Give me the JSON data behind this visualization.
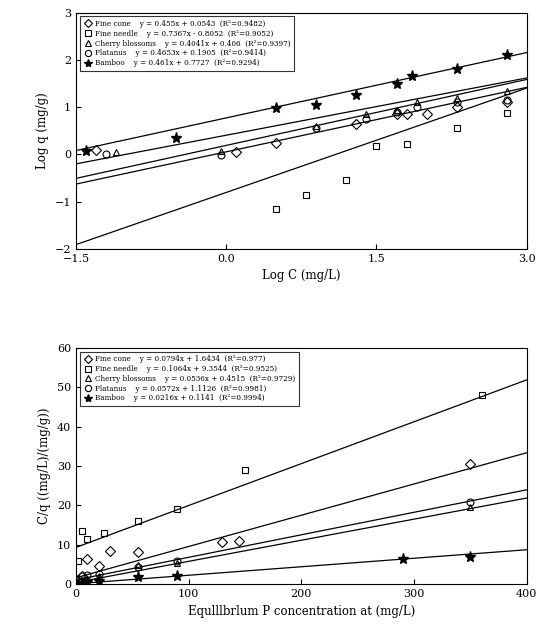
{
  "top": {
    "xlabel": "Log C (mg/L)",
    "ylabel": "Log q (mg/g)",
    "xlim": [
      -1.5,
      3.0
    ],
    "ylim": [
      -2.0,
      3.0
    ],
    "xticks": [
      -1.5,
      0,
      1.5,
      3
    ],
    "yticks": [
      -2,
      -1,
      0,
      1,
      2,
      3
    ],
    "series": [
      {
        "label": "Fine cone",
        "marker": "D",
        "markersize": 5,
        "eq_label": "y = 0.455x + 0.0543  (R²=0.9482)",
        "slope": 0.455,
        "intercept": 0.0543,
        "x_data": [
          -1.3,
          0.1,
          0.5,
          1.3,
          1.7,
          1.8,
          2.0,
          2.3,
          2.8
        ],
        "y_data": [
          0.1,
          0.05,
          0.25,
          0.65,
          0.85,
          0.85,
          0.85,
          1.0,
          1.1
        ]
      },
      {
        "label": "Fine needle",
        "marker": "s",
        "markersize": 5,
        "eq_label": "y = 0.7367x - 0.8052  (R²=0.9052)",
        "slope": 0.7367,
        "intercept": -0.8052,
        "x_data": [
          0.5,
          0.8,
          1.2,
          1.5,
          1.8,
          2.3,
          2.8
        ],
        "y_data": [
          -1.15,
          -0.85,
          -0.55,
          0.17,
          0.23,
          0.55,
          0.88
        ]
      },
      {
        "label": "Cherry blossoms",
        "marker": "^",
        "markersize": 5,
        "eq_label": "y = 0.4041x + 0.406  (R²=0.9397)",
        "slope": 0.4041,
        "intercept": 0.406,
        "x_data": [
          -1.1,
          -0.05,
          0.9,
          1.4,
          1.7,
          1.9,
          2.3,
          2.8
        ],
        "y_data": [
          0.05,
          0.07,
          0.6,
          0.85,
          0.95,
          1.1,
          1.2,
          1.35
        ]
      },
      {
        "label": "Platanus",
        "marker": "o",
        "markersize": 5,
        "eq_label": "y = 0.4653x + 0.1905  (R²=0.9414)",
        "slope": 0.4653,
        "intercept": 0.1905,
        "x_data": [
          -1.2,
          -0.05,
          0.9,
          1.4,
          1.7,
          1.9,
          2.3,
          2.8
        ],
        "y_data": [
          0.0,
          -0.02,
          0.55,
          0.75,
          0.9,
          1.0,
          1.1,
          1.15
        ]
      },
      {
        "label": "Bamboo",
        "marker": "star_text",
        "markersize": 8,
        "eq_label": "y = 0.461x + 0.7727  (R²=0.9294)",
        "slope": 0.461,
        "intercept": 0.7727,
        "x_data": [
          -1.4,
          -0.5,
          0.5,
          0.9,
          1.3,
          1.7,
          1.85,
          2.3,
          2.8
        ],
        "y_data": [
          0.08,
          0.35,
          0.98,
          1.05,
          1.25,
          1.5,
          1.65,
          1.8,
          2.1
        ]
      }
    ]
  },
  "bottom": {
    "xlabel": "Equlllbrlum P concentration at (mg/L)",
    "ylabel": "C/q ((mg/L)/(mg/g))",
    "xlim": [
      0,
      400
    ],
    "ylim": [
      0,
      60
    ],
    "xticks": [
      0,
      100,
      200,
      300,
      400
    ],
    "yticks": [
      0,
      10,
      20,
      30,
      40,
      50,
      60
    ],
    "series": [
      {
        "label": "Fine cone",
        "marker": "D",
        "markersize": 5,
        "eq_label": "y = 0.0794x + 1.6434  (R²=0.977)",
        "slope": 0.0794,
        "intercept": 1.6434,
        "x_data": [
          5,
          10,
          20,
          30,
          55,
          130,
          145,
          350
        ],
        "y_data": [
          2.0,
          6.5,
          4.5,
          8.5,
          8.2,
          10.7,
          11.0,
          30.5
        ]
      },
      {
        "label": "Fine needle",
        "marker": "s",
        "markersize": 5,
        "eq_label": "y = 0.1064x + 9.3544  (R²=0.9525)",
        "slope": 0.1064,
        "intercept": 9.3544,
        "x_data": [
          2,
          5,
          10,
          25,
          55,
          90,
          150,
          360
        ],
        "y_data": [
          5.8,
          13.5,
          11.5,
          13.0,
          16.0,
          19.0,
          29.0,
          48.0
        ]
      },
      {
        "label": "Cherry blossoms",
        "marker": "^",
        "markersize": 5,
        "eq_label": "y = 0.0536x + 0.4515  (R²=0.9729)",
        "slope": 0.0536,
        "intercept": 0.4515,
        "x_data": [
          2,
          5,
          10,
          20,
          55,
          90,
          350
        ],
        "y_data": [
          0.4,
          0.7,
          1.3,
          2.0,
          4.8,
          5.3,
          19.5
        ]
      },
      {
        "label": "Platanus",
        "marker": "o",
        "markersize": 5,
        "eq_label": "y = 0.0572x + 1.1126  (R²=0.9981)",
        "slope": 0.0572,
        "intercept": 1.1126,
        "x_data": [
          2,
          5,
          10,
          20,
          55,
          90,
          350
        ],
        "y_data": [
          1.2,
          2.2,
          2.4,
          2.7,
          4.3,
          5.8,
          21.0
        ]
      },
      {
        "label": "Bamboo",
        "marker": "star_text",
        "markersize": 8,
        "eq_label": "y = 0.0216x + 0.1141  (R²=0.9994)",
        "slope": 0.0216,
        "intercept": 0.1141,
        "x_data": [
          2,
          5,
          10,
          20,
          55,
          90,
          290,
          350
        ],
        "y_data": [
          0.15,
          0.3,
          0.5,
          0.9,
          1.8,
          2.2,
          6.3,
          7.0
        ]
      }
    ]
  },
  "figsize": [
    5.43,
    6.35
  ],
  "dpi": 100
}
